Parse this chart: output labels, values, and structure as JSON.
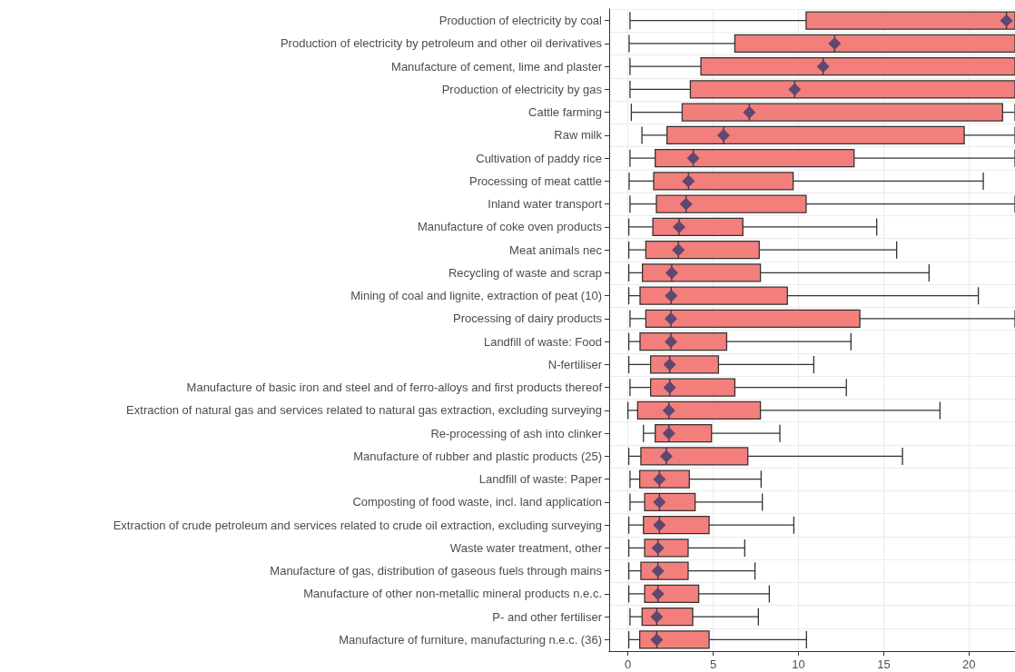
{
  "chart_data": {
    "type": "box",
    "orientation": "horizontal",
    "categories": [
      "Production of electricity by coal",
      "Production of electricity by petroleum and other oil derivatives",
      "Manufacture of cement, lime and plaster",
      "Production of electricity by gas",
      "Cattle farming",
      "Raw milk",
      "Cultivation of paddy rice",
      "Processing of meat cattle",
      "Inland water transport",
      "Manufacture of coke oven products",
      "Meat animals nec",
      "Recycling of waste and scrap",
      "Mining of coal and lignite, extraction of peat (10)",
      "Processing of dairy products",
      "Landfill of waste: Food",
      "N-fertiliser",
      "Manufacture of basic iron and steel and of ferro-alloys and first products thereof",
      "Extraction of natural gas and services related to natural gas extraction, excluding surveying",
      "Re-processing of ash into clinker",
      "Manufacture of rubber and plastic products (25)",
      "Landfill of waste: Paper",
      "Composting of food waste, incl. land application",
      "Extraction of crude petroleum and services related to crude oil extraction, excluding surveying",
      "Waste water treatment, other",
      "Manufacture of gas, distribution of gaseous fuels through mains",
      "Manufacture of other non-metallic mineral products n.e.c.",
      "P- and other fertiliser",
      "Manufacture of furniture, manufacturing n.e.c. (36)"
    ],
    "color": "#f27f7c",
    "marker": "diamond",
    "grid": true,
    "xlim": [
      -1.1,
      22.7
    ],
    "xticks": [
      0,
      5,
      10,
      15,
      20
    ],
    "boxes": [
      {
        "low": 0.12,
        "q1": 10.45,
        "median": 22.2,
        "q3": 22.7,
        "high": 22.7,
        "mean": 22.2
      },
      {
        "low": 0.07,
        "q1": 6.27,
        "median": 12.12,
        "q3": 22.7,
        "high": 22.7,
        "mean": 12.12
      },
      {
        "low": 0.12,
        "q1": 4.28,
        "median": 11.45,
        "q3": 22.7,
        "high": 22.7,
        "mean": 11.45
      },
      {
        "low": 0.12,
        "q1": 3.66,
        "median": 9.78,
        "q3": 22.7,
        "high": 22.7,
        "mean": 9.78
      },
      {
        "low": 0.2,
        "q1": 3.18,
        "median": 7.12,
        "q3": 21.97,
        "high": 22.7,
        "mean": 7.12
      },
      {
        "low": 0.82,
        "q1": 2.29,
        "median": 5.61,
        "q3": 19.72,
        "high": 22.7,
        "mean": 5.61
      },
      {
        "low": 0.12,
        "q1": 1.6,
        "median": 3.83,
        "q3": 13.26,
        "high": 22.7,
        "mean": 3.83
      },
      {
        "low": 0.07,
        "q1": 1.51,
        "median": 3.55,
        "q3": 9.69,
        "high": 20.84,
        "mean": 3.55
      },
      {
        "low": 0.12,
        "q1": 1.67,
        "median": 3.41,
        "q3": 10.45,
        "high": 22.7,
        "mean": 3.41
      },
      {
        "low": 0.05,
        "q1": 1.46,
        "median": 3.0,
        "q3": 6.74,
        "high": 14.59,
        "mean": 3.0
      },
      {
        "low": 0.05,
        "q1": 1.05,
        "median": 2.96,
        "q3": 7.7,
        "high": 15.76,
        "mean": 2.96
      },
      {
        "low": 0.05,
        "q1": 0.85,
        "median": 2.57,
        "q3": 7.77,
        "high": 17.66,
        "mean": 2.57
      },
      {
        "low": 0.05,
        "q1": 0.71,
        "median": 2.54,
        "q3": 9.35,
        "high": 20.55,
        "mean": 2.54
      },
      {
        "low": 0.12,
        "q1": 1.05,
        "median": 2.52,
        "q3": 13.6,
        "high": 22.7,
        "mean": 2.52
      },
      {
        "low": 0.05,
        "q1": 0.71,
        "median": 2.52,
        "q3": 5.79,
        "high": 13.08,
        "mean": 2.52
      },
      {
        "low": 0.05,
        "q1": 1.33,
        "median": 2.45,
        "q3": 5.31,
        "high": 10.9,
        "mean": 2.45
      },
      {
        "low": 0.12,
        "q1": 1.33,
        "median": 2.45,
        "q3": 6.27,
        "high": 12.81,
        "mean": 2.45
      },
      {
        "low": 0.0,
        "q1": 0.57,
        "median": 2.4,
        "q3": 7.77,
        "high": 18.3,
        "mean": 2.4
      },
      {
        "low": 0.91,
        "q1": 1.6,
        "median": 2.4,
        "q3": 4.9,
        "high": 8.91,
        "mean": 2.4
      },
      {
        "low": 0.05,
        "q1": 0.76,
        "median": 2.25,
        "q3": 7.03,
        "high": 16.1,
        "mean": 2.25
      },
      {
        "low": 0.12,
        "q1": 0.69,
        "median": 1.85,
        "q3": 3.6,
        "high": 7.81,
        "mean": 1.85
      },
      {
        "low": 0.12,
        "q1": 0.98,
        "median": 1.85,
        "q3": 3.94,
        "high": 7.88,
        "mean": 1.85
      },
      {
        "low": 0.05,
        "q1": 0.91,
        "median": 1.85,
        "q3": 4.76,
        "high": 9.73,
        "mean": 1.85
      },
      {
        "low": 0.05,
        "q1": 0.98,
        "median": 1.76,
        "q3": 3.53,
        "high": 6.85,
        "mean": 1.76
      },
      {
        "low": 0.05,
        "q1": 0.76,
        "median": 1.76,
        "q3": 3.53,
        "high": 7.45,
        "mean": 1.76
      },
      {
        "low": 0.05,
        "q1": 0.98,
        "median": 1.76,
        "q3": 4.15,
        "high": 8.29,
        "mean": 1.76
      },
      {
        "low": 0.12,
        "q1": 0.83,
        "median": 1.69,
        "q3": 3.8,
        "high": 7.65,
        "mean": 1.69
      },
      {
        "low": 0.05,
        "q1": 0.69,
        "median": 1.69,
        "q3": 4.76,
        "high": 10.47,
        "mean": 1.69
      }
    ]
  }
}
